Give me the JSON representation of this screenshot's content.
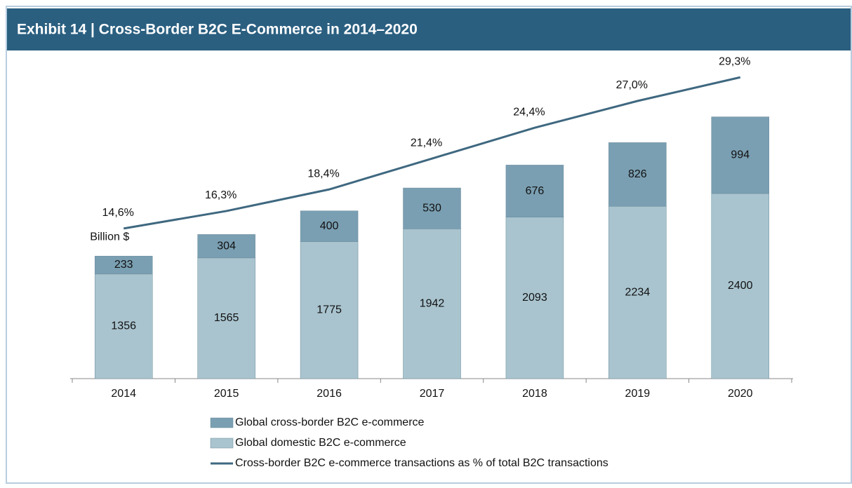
{
  "chart_data": {
    "type": "bar",
    "stacked": true,
    "title": "Exhibit 14 | Cross-Border B2C E-Commerce in 2014–2020",
    "annotation": "Billion $",
    "categories": [
      "2014",
      "2015",
      "2016",
      "2017",
      "2018",
      "2019",
      "2020"
    ],
    "ylim": [
      0,
      4000
    ],
    "y2lim": [
      0,
      30
    ],
    "series": [
      {
        "name": "Global domestic B2C e-commerce",
        "color": "#a9c4cf",
        "values": [
          1356,
          1565,
          1775,
          1942,
          2093,
          2234,
          2400
        ]
      },
      {
        "name": "Global cross-border B2C e-commerce",
        "color": "#7a9fb2",
        "values": [
          233,
          304,
          400,
          530,
          676,
          826,
          994
        ]
      },
      {
        "name": "Cross-border B2C e-commerce transactions as % of total B2C transactions",
        "color": "#3f6880",
        "type": "line",
        "axis": "y2",
        "values": [
          14.6,
          16.3,
          18.4,
          21.4,
          24.4,
          27.0,
          29.3
        ],
        "value_labels": [
          "14,6%",
          "16,3%",
          "18,4%",
          "21,4%",
          "24,4%",
          "27,0%",
          "29,3%"
        ]
      }
    ],
    "legend_order": [
      1,
      0,
      2
    ]
  }
}
